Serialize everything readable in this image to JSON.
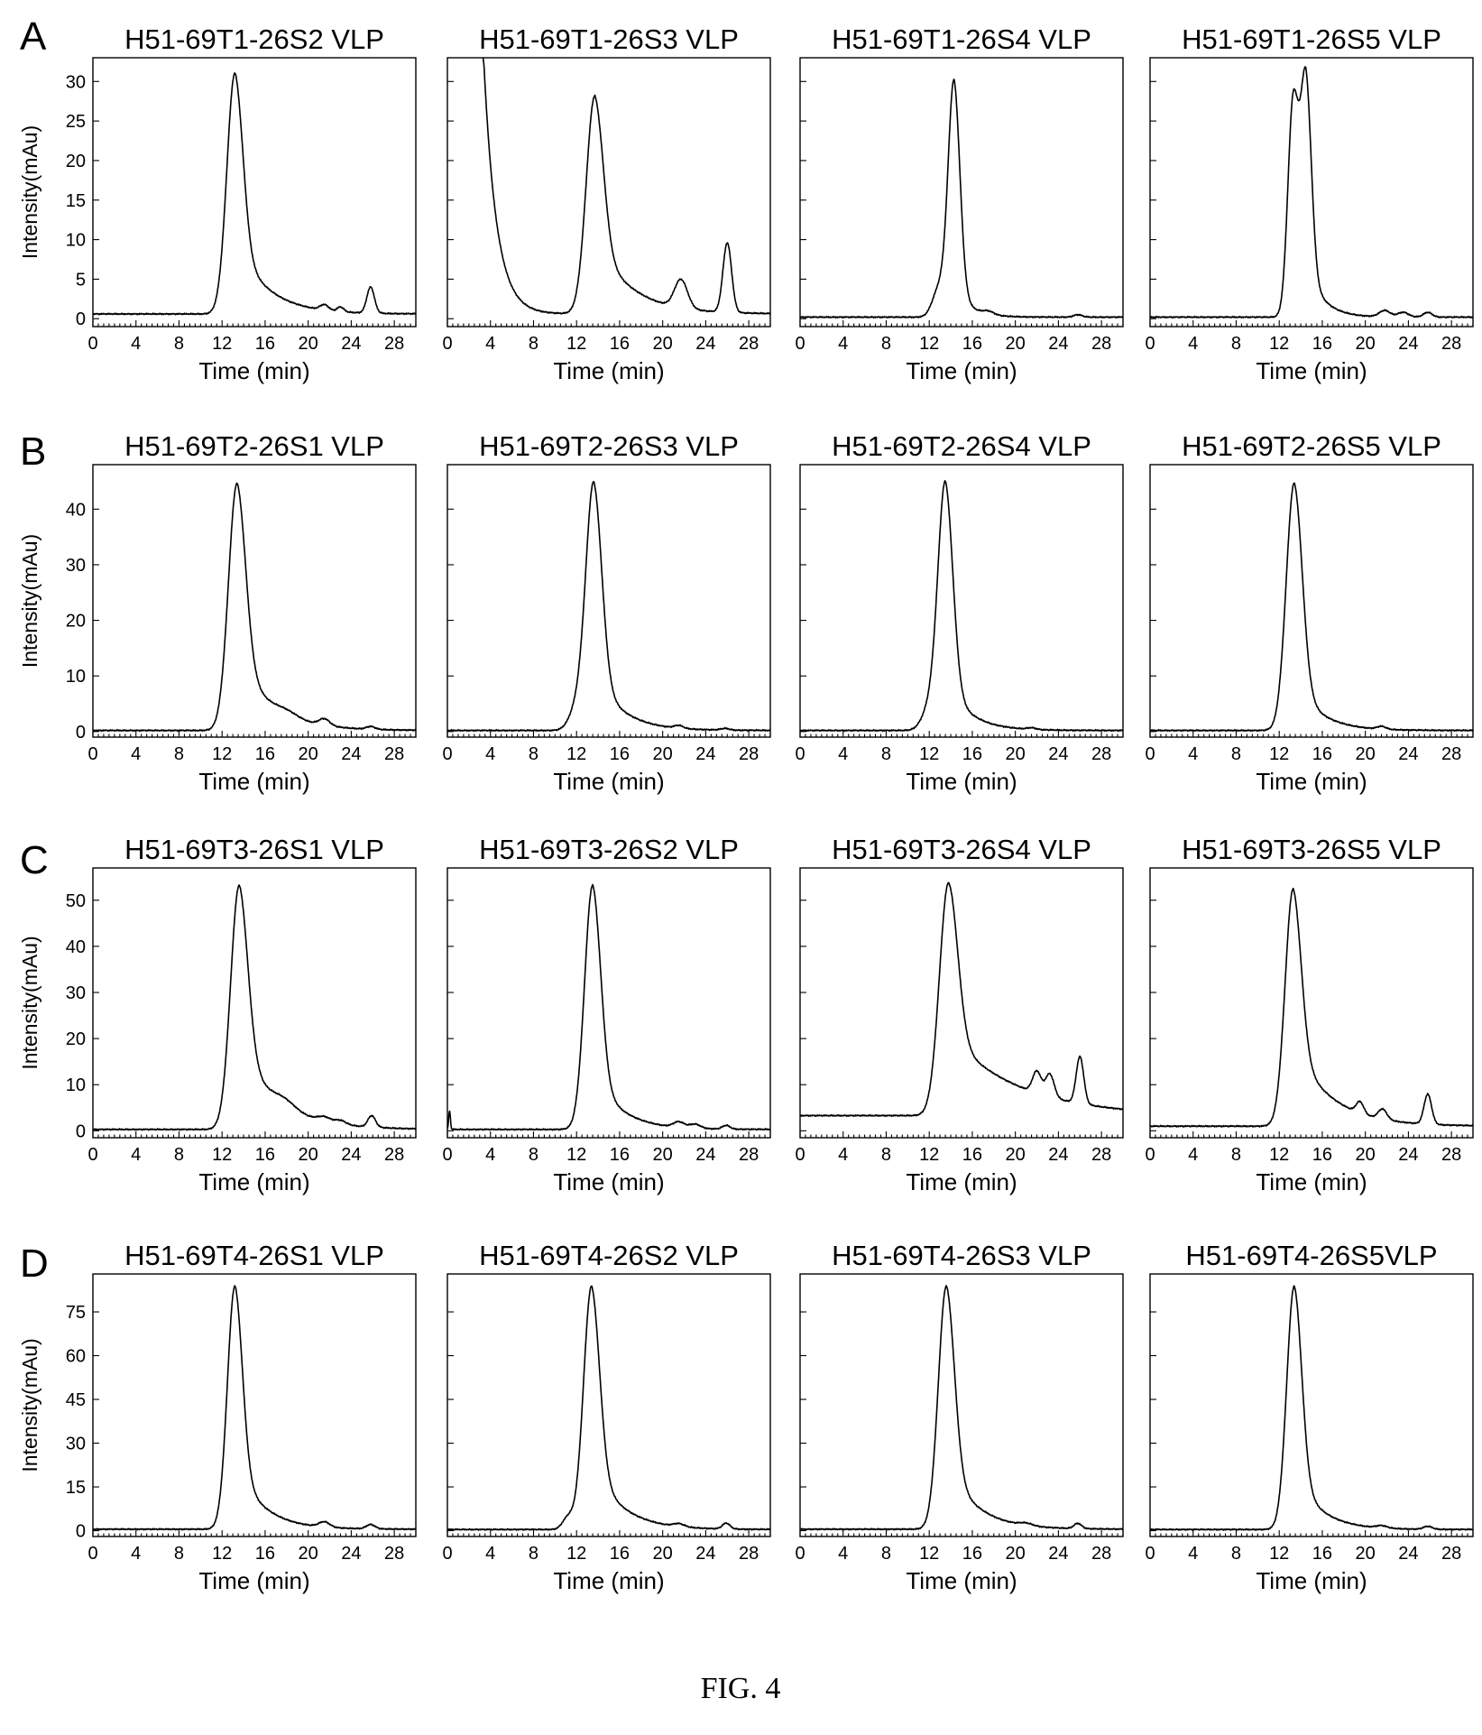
{
  "figure_caption": "FIG. 4",
  "chart_data": [
    {
      "row": "A",
      "title": "H51-69T1-26S2 VLP",
      "xlabel": "Time (min)",
      "ylabel": "Intensity(mAu)",
      "xlim": [
        0,
        30
      ],
      "xticks": [
        0,
        4,
        8,
        12,
        16,
        20,
        24,
        28
      ],
      "ylim": [
        -1,
        33
      ],
      "yticks": [
        0,
        5,
        10,
        15,
        20,
        25,
        30
      ],
      "baseline": 0.6,
      "decay": null,
      "peaks": [
        {
          "x": 13.2,
          "h": 30.5,
          "w": 0.75,
          "tail": 0.9
        },
        {
          "x": 21.5,
          "h": 0.7,
          "w": 0.4
        },
        {
          "x": 23.0,
          "h": 0.6,
          "w": 0.3
        },
        {
          "x": 25.8,
          "h": 3.3,
          "w": 0.35
        }
      ]
    },
    {
      "row": "A",
      "title": "H51-69T1-26S3 VLP",
      "xlabel": "Time (min)",
      "ylabel": "",
      "xlim": [
        0,
        30
      ],
      "xticks": [
        0,
        4,
        8,
        12,
        16,
        20,
        24,
        28
      ],
      "ylim": [
        -1,
        33
      ],
      "yticks": [],
      "baseline": 0.6,
      "decay": {
        "x0": 3.4,
        "a": 31.5,
        "k": 0.85
      },
      "peaks": [
        {
          "x": 13.7,
          "h": 27.6,
          "w": 0.8,
          "tail": 1.0
        },
        {
          "x": 21.7,
          "h": 3.6,
          "w": 0.6
        },
        {
          "x": 26.0,
          "h": 8.8,
          "w": 0.4
        }
      ]
    },
    {
      "row": "A",
      "title": "H51-69T1-26S4 VLP",
      "xlabel": "Time (min)",
      "ylabel": "",
      "xlim": [
        0,
        30
      ],
      "xticks": [
        0,
        4,
        8,
        12,
        16,
        20,
        24,
        28
      ],
      "ylim": [
        -1,
        33
      ],
      "yticks": [],
      "baseline": 0.2,
      "decay": null,
      "peaks": [
        {
          "x": 14.3,
          "h": 29.8,
          "w": 0.55,
          "tail": 0.4
        },
        {
          "x": 12.9,
          "h": 3.5,
          "w": 0.6
        },
        {
          "x": 17.5,
          "h": 0.4,
          "w": 0.5
        },
        {
          "x": 25.8,
          "h": 0.3,
          "w": 0.4
        }
      ]
    },
    {
      "row": "A",
      "title": "H51-69T1-26S5 VLP",
      "xlabel": "Time (min)",
      "ylabel": "",
      "xlim": [
        0,
        30
      ],
      "xticks": [
        0,
        4,
        8,
        12,
        16,
        20,
        24,
        28
      ],
      "ylim": [
        -1,
        33
      ],
      "yticks": [],
      "baseline": 0.2,
      "decay": null,
      "peaks": [
        {
          "x": 13.3,
          "h": 27.0,
          "w": 0.5,
          "tail": 0.3
        },
        {
          "x": 14.5,
          "h": 29.0,
          "w": 0.5,
          "tail": 0.6
        },
        {
          "x": 21.8,
          "h": 0.8,
          "w": 0.5
        },
        {
          "x": 23.5,
          "h": 0.6,
          "w": 0.5
        },
        {
          "x": 25.8,
          "h": 0.6,
          "w": 0.4
        }
      ]
    },
    {
      "row": "B",
      "title": "H51-69T2-26S1 VLP",
      "xlabel": "Time (min)",
      "ylabel": "Intensity(mAu)",
      "xlim": [
        0,
        30
      ],
      "xticks": [
        0,
        4,
        8,
        12,
        16,
        20,
        24,
        28
      ],
      "ylim": [
        -1,
        48
      ],
      "yticks": [
        0,
        10,
        20,
        30,
        40
      ],
      "baseline": 0.2,
      "decay": null,
      "peaks": [
        {
          "x": 13.4,
          "h": 44.5,
          "w": 0.8,
          "tail": 0.9
        },
        {
          "x": 18.0,
          "h": 0.8,
          "w": 1.0
        },
        {
          "x": 21.5,
          "h": 1.2,
          "w": 0.5
        },
        {
          "x": 25.8,
          "h": 0.5,
          "w": 0.4
        }
      ]
    },
    {
      "row": "B",
      "title": "H51-69T2-26S3 VLP",
      "xlabel": "Time (min)",
      "ylabel": "",
      "xlim": [
        0,
        30
      ],
      "xticks": [
        0,
        4,
        8,
        12,
        16,
        20,
        24,
        28
      ],
      "ylim": [
        -1,
        48
      ],
      "yticks": [],
      "baseline": 0.2,
      "decay": null,
      "peaks": [
        {
          "x": 13.6,
          "h": 44.5,
          "w": 0.75,
          "tail": 0.7
        },
        {
          "x": 12.0,
          "h": 3.5,
          "w": 0.7
        },
        {
          "x": 21.5,
          "h": 0.5,
          "w": 0.4
        },
        {
          "x": 25.8,
          "h": 0.3,
          "w": 0.4
        }
      ]
    },
    {
      "row": "B",
      "title": "H51-69T2-26S4 VLP",
      "xlabel": "Time (min)",
      "ylabel": "",
      "xlim": [
        0,
        30
      ],
      "xticks": [
        0,
        4,
        8,
        12,
        16,
        20,
        24,
        28
      ],
      "ylim": [
        -1,
        48
      ],
      "yticks": [],
      "baseline": 0.2,
      "decay": null,
      "peaks": [
        {
          "x": 13.5,
          "h": 44.5,
          "w": 0.7,
          "tail": 0.6
        },
        {
          "x": 12.0,
          "h": 3.5,
          "w": 0.7
        },
        {
          "x": 21.5,
          "h": 0.3,
          "w": 0.4
        }
      ]
    },
    {
      "row": "B",
      "title": "H51-69T2-26S5 VLP",
      "xlabel": "Time (min)",
      "ylabel": "",
      "xlim": [
        0,
        30
      ],
      "xticks": [
        0,
        4,
        8,
        12,
        16,
        20,
        24,
        28
      ],
      "ylim": [
        -1,
        48
      ],
      "yticks": [],
      "baseline": 0.2,
      "decay": null,
      "peaks": [
        {
          "x": 13.4,
          "h": 44.5,
          "w": 0.75,
          "tail": 0.6
        },
        {
          "x": 21.5,
          "h": 0.5,
          "w": 0.4
        }
      ]
    },
    {
      "row": "C",
      "title": "H51-69T3-26S1 VLP",
      "xlabel": "Time (min)",
      "ylabel": "Intensity(mAu)",
      "xlim": [
        0,
        30
      ],
      "xticks": [
        0,
        4,
        8,
        12,
        16,
        20,
        24,
        28
      ],
      "ylim": [
        -1.5,
        57
      ],
      "yticks": [
        0,
        10,
        20,
        30,
        40,
        50
      ],
      "baseline": 0.3,
      "decay": null,
      "peaks": [
        {
          "x": 13.6,
          "h": 53.0,
          "w": 0.8,
          "tail": 1.1
        },
        {
          "x": 17.8,
          "h": 1.5,
          "w": 1.0
        },
        {
          "x": 21.5,
          "h": 1.0,
          "w": 0.6
        },
        {
          "x": 23.0,
          "h": 0.8,
          "w": 0.5
        },
        {
          "x": 25.9,
          "h": 2.5,
          "w": 0.35
        }
      ]
    },
    {
      "row": "C",
      "title": "H51-69T3-26S2 VLP",
      "xlabel": "Time (min)",
      "ylabel": "",
      "xlim": [
        0,
        30
      ],
      "xticks": [
        0,
        4,
        8,
        12,
        16,
        20,
        24,
        28
      ],
      "ylim": [
        -1.5,
        57
      ],
      "yticks": [],
      "baseline": 0.3,
      "decay": null,
      "peaks": [
        {
          "x": 13.5,
          "h": 53.0,
          "w": 0.75,
          "tail": 0.7
        },
        {
          "x": 0.2,
          "h": 4.0,
          "w": 0.08
        },
        {
          "x": 21.5,
          "h": 1.2,
          "w": 0.5
        },
        {
          "x": 23.0,
          "h": 0.9,
          "w": 0.5
        },
        {
          "x": 25.9,
          "h": 0.8,
          "w": 0.35
        }
      ]
    },
    {
      "row": "C",
      "title": "H51-69T3-26S4 VLP",
      "xlabel": "Time (min)",
      "ylabel": "",
      "xlim": [
        0,
        30
      ],
      "xticks": [
        0,
        4,
        8,
        12,
        16,
        20,
        24,
        28
      ],
      "ylim": [
        -1.5,
        57
      ],
      "yticks": [],
      "baseline": 3.3,
      "decay": null,
      "peaks": [
        {
          "x": 13.8,
          "h": 50.5,
          "w": 0.85,
          "tail": 2.4
        },
        {
          "x": 22.0,
          "h": 4.8,
          "w": 0.4
        },
        {
          "x": 23.2,
          "h": 5.0,
          "w": 0.4
        },
        {
          "x": 26.0,
          "h": 10.2,
          "w": 0.35
        }
      ]
    },
    {
      "row": "C",
      "title": "H51-69T3-26S5 VLP",
      "xlabel": "Time (min)",
      "ylabel": "",
      "xlim": [
        0,
        30
      ],
      "xticks": [
        0,
        4,
        8,
        12,
        16,
        20,
        24,
        28
      ],
      "ylim": [
        -1.5,
        57
      ],
      "yticks": [],
      "baseline": 1.0,
      "decay": null,
      "peaks": [
        {
          "x": 13.3,
          "h": 51.5,
          "w": 0.75,
          "tail": 1.2
        },
        {
          "x": 19.5,
          "h": 2.5,
          "w": 0.35
        },
        {
          "x": 21.6,
          "h": 2.2,
          "w": 0.4
        },
        {
          "x": 25.8,
          "h": 6.5,
          "w": 0.35
        }
      ]
    },
    {
      "row": "D",
      "title": "H51-69T4-26S1 VLP",
      "xlabel": "Time (min)",
      "ylabel": "Intensity(mAu)",
      "xlim": [
        0,
        30
      ],
      "xticks": [
        0,
        4,
        8,
        12,
        16,
        20,
        24,
        28
      ],
      "ylim": [
        -2,
        88
      ],
      "yticks": [
        0,
        15,
        30,
        45,
        60,
        75
      ],
      "baseline": 0.5,
      "decay": null,
      "peaks": [
        {
          "x": 13.2,
          "h": 83.5,
          "w": 0.7,
          "tail": 0.8
        },
        {
          "x": 21.5,
          "h": 1.8,
          "w": 0.5
        },
        {
          "x": 25.8,
          "h": 1.5,
          "w": 0.4
        }
      ]
    },
    {
      "row": "D",
      "title": "H51-69T4-26S2 VLP",
      "xlabel": "Time (min)",
      "ylabel": "",
      "xlim": [
        0,
        30
      ],
      "xticks": [
        0,
        4,
        8,
        12,
        16,
        20,
        24,
        28
      ],
      "ylim": [
        -2,
        88
      ],
      "yticks": [],
      "baseline": 0.4,
      "decay": null,
      "peaks": [
        {
          "x": 13.4,
          "h": 83.5,
          "w": 0.75,
          "tail": 0.8
        },
        {
          "x": 11.2,
          "h": 4.0,
          "w": 0.5
        },
        {
          "x": 21.5,
          "h": 1.0,
          "w": 0.5
        },
        {
          "x": 25.9,
          "h": 2.0,
          "w": 0.35
        }
      ]
    },
    {
      "row": "D",
      "title": "H51-69T4-26S3 VLP",
      "xlabel": "Time (min)",
      "ylabel": "",
      "xlim": [
        0,
        30
      ],
      "xticks": [
        0,
        4,
        8,
        12,
        16,
        20,
        24,
        28
      ],
      "ylim": [
        -2,
        88
      ],
      "yticks": [],
      "baseline": 0.5,
      "decay": null,
      "peaks": [
        {
          "x": 13.6,
          "h": 83.5,
          "w": 0.75,
          "tail": 0.8
        },
        {
          "x": 21.0,
          "h": 0.8,
          "w": 0.6
        },
        {
          "x": 25.8,
          "h": 1.8,
          "w": 0.35
        }
      ]
    },
    {
      "row": "D",
      "title": "H51-69T4-26S5VLP",
      "xlabel": "Time (min)",
      "ylabel": "",
      "xlim": [
        0,
        30
      ],
      "xticks": [
        0,
        4,
        8,
        12,
        16,
        20,
        24,
        28
      ],
      "ylim": [
        -2,
        88
      ],
      "yticks": [],
      "baseline": 0.4,
      "decay": null,
      "peaks": [
        {
          "x": 13.4,
          "h": 83.5,
          "w": 0.7,
          "tail": 0.7
        },
        {
          "x": 21.5,
          "h": 0.8,
          "w": 0.5
        },
        {
          "x": 25.8,
          "h": 1.0,
          "w": 0.4
        }
      ]
    }
  ]
}
